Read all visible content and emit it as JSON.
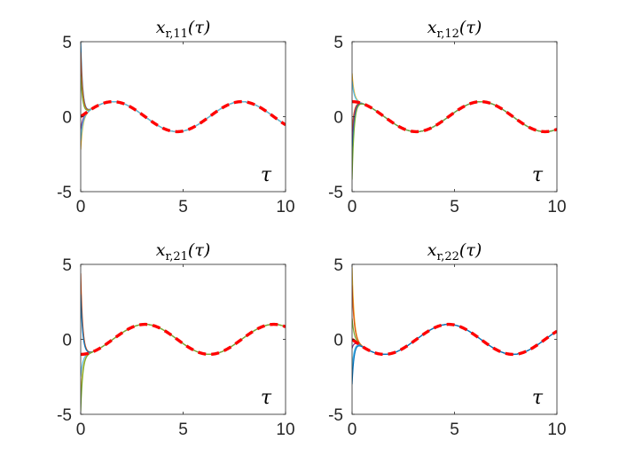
{
  "chart_data": [
    {
      "type": "line",
      "title": {
        "var": "x",
        "sub": "r,11",
        "arg": "(τ)"
      },
      "xlabel": "τ",
      "xlim": [
        0,
        10
      ],
      "ylim": [
        -5,
        5
      ],
      "xticks": [
        0,
        5,
        10
      ],
      "yticks": [
        -5,
        0,
        5
      ],
      "reference": {
        "func": "sin",
        "style": "dashed",
        "color": "#ff0000"
      },
      "trajectories": [
        {
          "initial": 5.0,
          "color": "#0072BD"
        },
        {
          "initial": 4.3,
          "color": "#D95319"
        },
        {
          "initial": 2.8,
          "color": "#77AC30"
        },
        {
          "initial": -0.9,
          "color": "#7E2F8E"
        },
        {
          "initial": -2.2,
          "color": "#EDB120"
        },
        {
          "initial": -1.6,
          "color": "#4DBEEE"
        }
      ]
    },
    {
      "type": "line",
      "title": {
        "var": "x",
        "sub": "r,12",
        "arg": "(τ)"
      },
      "xlabel": "τ",
      "xlim": [
        0,
        10
      ],
      "ylim": [
        -5,
        5
      ],
      "xticks": [
        0,
        5,
        10
      ],
      "yticks": [
        -5,
        0,
        5
      ],
      "reference": {
        "func": "cos",
        "style": "dashed",
        "color": "#ff0000"
      },
      "trajectories": [
        {
          "initial": 2.9,
          "color": "#EDB120"
        },
        {
          "initial": 2.4,
          "color": "#4DBEEE"
        },
        {
          "initial": -1.0,
          "color": "#D95319"
        },
        {
          "initial": -2.0,
          "color": "#7E2F8E"
        },
        {
          "initial": -3.2,
          "color": "#0072BD"
        },
        {
          "initial": -4.2,
          "color": "#77AC30"
        }
      ]
    },
    {
      "type": "line",
      "title": {
        "var": "x",
        "sub": "r,21",
        "arg": "(τ)"
      },
      "xlabel": "τ",
      "xlim": [
        0,
        10
      ],
      "ylim": [
        -5,
        5
      ],
      "xticks": [
        0,
        5,
        10
      ],
      "yticks": [
        -5,
        0,
        5
      ],
      "reference": {
        "func": "-cos",
        "style": "dashed",
        "color": "#ff0000"
      },
      "trajectories": [
        {
          "initial": 4.4,
          "color": "#D95319"
        },
        {
          "initial": 3.0,
          "color": "#0072BD"
        },
        {
          "initial": -1.0,
          "color": "#7E2F8E"
        },
        {
          "initial": -2.5,
          "color": "#4DBEEE"
        },
        {
          "initial": -4.0,
          "color": "#EDB120"
        },
        {
          "initial": -4.8,
          "color": "#77AC30"
        }
      ]
    },
    {
      "type": "line",
      "title": {
        "var": "x",
        "sub": "r,22",
        "arg": "(τ)"
      },
      "xlabel": "τ",
      "xlim": [
        0,
        10
      ],
      "ylim": [
        -5,
        5
      ],
      "xticks": [
        0,
        5,
        10
      ],
      "yticks": [
        -5,
        0,
        5
      ],
      "reference": {
        "func": "-sin",
        "style": "dashed",
        "color": "#ff0000"
      },
      "trajectories": [
        {
          "initial": 4.8,
          "color": "#EDB120"
        },
        {
          "initial": 3.6,
          "color": "#D95319"
        },
        {
          "initial": 1.4,
          "color": "#77AC30"
        },
        {
          "initial": -0.6,
          "color": "#7E2F8E"
        },
        {
          "initial": -2.0,
          "color": "#4DBEEE"
        },
        {
          "initial": -3.0,
          "color": "#0072BD"
        }
      ]
    }
  ]
}
